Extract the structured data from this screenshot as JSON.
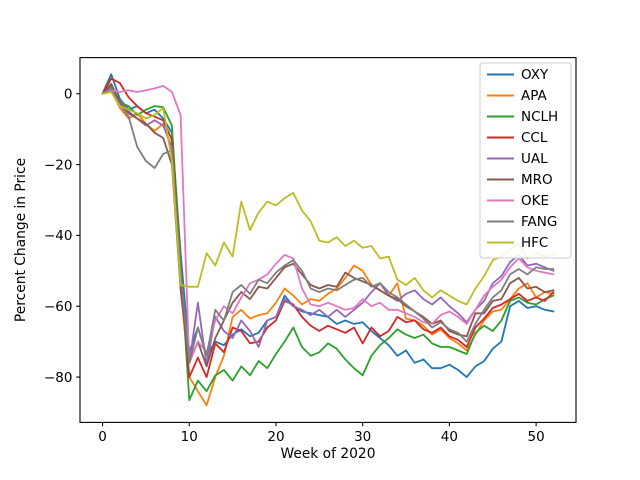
{
  "figure": {
    "background_color": "#ffffff",
    "axes_background": "#ffffff",
    "spine_color": "#000000"
  },
  "chart_data": {
    "type": "line",
    "title": "",
    "xlabel": "Week of 2020",
    "ylabel": "Percent Change in Price",
    "grid": false,
    "legend_position": "upper right",
    "legend_border_color": "#cccccc",
    "xlim": [
      -2.6,
      54.6
    ],
    "ylim": [
      -92.8,
      10.2
    ],
    "xticks": [
      0,
      10,
      20,
      30,
      40,
      50
    ],
    "yticks": [
      0,
      -20,
      -40,
      -60,
      -80
    ],
    "x": [
      0,
      1,
      2,
      3,
      4,
      5,
      6,
      7,
      8,
      9,
      10,
      11,
      12,
      13,
      14,
      15,
      16,
      17,
      18,
      19,
      20,
      21,
      22,
      23,
      24,
      25,
      26,
      27,
      28,
      29,
      30,
      31,
      32,
      33,
      34,
      35,
      36,
      37,
      38,
      39,
      40,
      41,
      42,
      43,
      44,
      45,
      46,
      47,
      48,
      49,
      50,
      51,
      52
    ],
    "series": [
      {
        "name": "OXY",
        "color": "#1f77b4",
        "values": [
          0,
          5.5,
          -1.5,
          -4.5,
          -3.5,
          -5.5,
          -4.5,
          -7,
          -11,
          -45,
          -73,
          -66,
          -74,
          -70,
          -71,
          -68,
          -66.5,
          -68.5,
          -67.5,
          -64,
          -63,
          -57,
          -60,
          -61.5,
          -62,
          -62.5,
          -63,
          -65,
          -64,
          -65,
          -64.5,
          -67,
          -69,
          -71,
          -74,
          -72.5,
          -76,
          -75,
          -77.5,
          -77.5,
          -76.5,
          -78,
          -80,
          -77,
          -75.5,
          -72,
          -70,
          -60,
          -58.5,
          -60.5,
          -60,
          -61,
          -61.5
        ]
      },
      {
        "name": "APA",
        "color": "#ff7f0e",
        "values": [
          0,
          1.2,
          -4,
          -7,
          -5.5,
          -8.5,
          -10.5,
          -8.5,
          -16,
          -55,
          -80,
          -84,
          -88,
          -80,
          -74,
          -63,
          -61,
          -63.5,
          -62.5,
          -62,
          -59,
          -55,
          -57,
          -59.5,
          -58,
          -58.5,
          -56.5,
          -55,
          -52,
          -48.5,
          -50,
          -54,
          -55.5,
          -57,
          -53.5,
          -63.5,
          -64,
          -65.5,
          -68,
          -66.5,
          -69,
          -70.5,
          -72.5,
          -68,
          -64,
          -61.5,
          -61,
          -58,
          -55,
          -53.5,
          -57.5,
          -56,
          -56.5
        ]
      },
      {
        "name": "NCLH",
        "color": "#2ca02c",
        "values": [
          0,
          2.2,
          -2.5,
          -3.5,
          -6,
          -4.5,
          -3.5,
          -3.8,
          -9,
          -48,
          -86.5,
          -81,
          -84,
          -79.5,
          -78,
          -81,
          -77,
          -79.5,
          -75.5,
          -77.5,
          -73.5,
          -70,
          -66,
          -71.5,
          -74,
          -73,
          -70.5,
          -72,
          -75,
          -77.5,
          -79.5,
          -74,
          -71,
          -69,
          -66.5,
          -68,
          -69,
          -68,
          -70.5,
          -71.5,
          -71.5,
          -72.5,
          -73.5,
          -67.5,
          -65.5,
          -67,
          -64,
          -58.5,
          -57.5,
          -59,
          -59.5,
          -58,
          -57
        ]
      },
      {
        "name": "CCL",
        "color": "#d62728",
        "values": [
          0,
          4.3,
          3,
          -1,
          -3.5,
          -5.5,
          -6.5,
          -7.5,
          -13,
          -50,
          -80,
          -74.5,
          -80,
          -70.5,
          -73,
          -66,
          -67,
          -70.5,
          -70,
          -66,
          -64,
          -58.5,
          -59.5,
          -63,
          -65.5,
          -67,
          -65.5,
          -66.5,
          -67.5,
          -66,
          -70.5,
          -66,
          -68.5,
          -67,
          -63,
          -64.5,
          -64,
          -66.5,
          -67.5,
          -66,
          -68.5,
          -69.5,
          -71.5,
          -66,
          -63.5,
          -60.5,
          -59.5,
          -58,
          -56.5,
          -58.5,
          -57.5,
          -58.5,
          -56
        ]
      },
      {
        "name": "UAL",
        "color": "#9467bd",
        "values": [
          0,
          1.5,
          -2,
          -5,
          -7,
          -9,
          -7.5,
          -9,
          -15,
          -55,
          -76,
          -59,
          -76.5,
          -63,
          -67,
          -69,
          -64,
          -67,
          -71.5,
          -64,
          -63,
          -58,
          -60,
          -61,
          -62.5,
          -61,
          -63,
          -61,
          -63,
          -61,
          -59,
          -56,
          -53.5,
          -57,
          -58.5,
          -56.5,
          -55.5,
          -58,
          -59.5,
          -57.5,
          -60,
          -62,
          -64.5,
          -61,
          -58.5,
          -53.5,
          -51.5,
          -47.5,
          -45.5,
          -48.5,
          -48,
          -49,
          -50
        ]
      },
      {
        "name": "MRO",
        "color": "#8c564b",
        "values": [
          0,
          2.8,
          -2.5,
          -5.5,
          -7,
          -8.5,
          -11,
          -12.5,
          -20,
          -55,
          -76,
          -70,
          -77,
          -69,
          -64,
          -59,
          -56,
          -58,
          -54.5,
          -55,
          -52,
          -49,
          -48,
          -51,
          -54,
          -55,
          -54,
          -54.5,
          -50.5,
          -52,
          -53,
          -54,
          -55.5,
          -57,
          -58,
          -60,
          -61.5,
          -63,
          -65,
          -64,
          -67,
          -68,
          -68.5,
          -62,
          -62,
          -58.5,
          -58,
          -53.5,
          -52,
          -55,
          -54.5,
          -56,
          -55.5
        ]
      },
      {
        "name": "OKE",
        "color": "#e377c2",
        "values": [
          0,
          0.9,
          0.5,
          1,
          0.5,
          1,
          1.5,
          2.2,
          0.5,
          -6,
          -76,
          -70,
          -73,
          -64,
          -60,
          -62,
          -57.5,
          -53.5,
          -52.5,
          -51,
          -48,
          -45.5,
          -46.5,
          -55,
          -59.5,
          -60,
          -59,
          -60,
          -61,
          -60.5,
          -58,
          -60,
          -59,
          -61,
          -61,
          -62,
          -63,
          -64.5,
          -65,
          -62.5,
          -61.5,
          -63,
          -65,
          -61,
          -57,
          -54.5,
          -52.5,
          -49,
          -46.5,
          -49,
          -50,
          -50.5,
          -51
        ]
      },
      {
        "name": "FANG",
        "color": "#7f7f7f",
        "values": [
          0,
          0.7,
          -3,
          -6.5,
          -15,
          -19,
          -21,
          -17,
          -16,
          -50,
          -76,
          -66,
          -74,
          -61,
          -64,
          -56,
          -54,
          -56.5,
          -52.5,
          -53.5,
          -50.5,
          -48.5,
          -47,
          -50,
          -55,
          -56,
          -55,
          -55.5,
          -54,
          -52.5,
          -52,
          -54.5,
          -53.5,
          -56,
          -57.5,
          -59.5,
          -61.5,
          -63.5,
          -66,
          -64.5,
          -66.5,
          -67.5,
          -70,
          -65,
          -61,
          -57.5,
          -55.5,
          -51,
          -49.5,
          -51,
          -49,
          -49.5,
          -49.5
        ]
      },
      {
        "name": "HFC",
        "color": "#bcbd22",
        "values": [
          0,
          0.5,
          -3.5,
          -4.5,
          -5.5,
          -7,
          -6,
          -4,
          -19,
          -54,
          -54.5,
          -54.5,
          -45,
          -48.5,
          -42,
          -46,
          -30.5,
          -38.5,
          -33.5,
          -30.5,
          -31.5,
          -29.5,
          -28,
          -33,
          -36,
          -41.5,
          -42,
          -40.5,
          -43,
          -41.5,
          -43.5,
          -43,
          -46.5,
          -46,
          -52.5,
          -54,
          -52,
          -55.5,
          -57.5,
          -55.5,
          -57,
          -58.5,
          -59.5,
          -55,
          -51.5,
          -47,
          -46,
          -44,
          -42.5,
          -46.5,
          -45,
          -46,
          -45.5
        ]
      }
    ]
  }
}
